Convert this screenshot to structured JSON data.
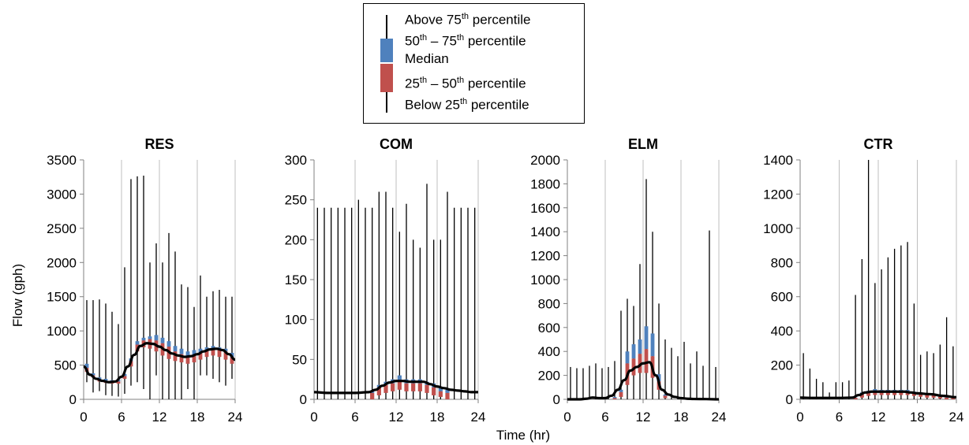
{
  "legend": {
    "items": [
      {
        "pre": "Above 75",
        "sup": "th",
        "post": " percentile"
      },
      {
        "pre": "50",
        "sup": "th",
        "post": " – 75",
        "sup2": "th",
        "post2": " percentile"
      },
      {
        "pre": "Median",
        "sup": "",
        "post": ""
      },
      {
        "pre": "25",
        "sup": "th",
        "post": " – 50",
        "sup2": "th",
        "post2": " percentile"
      },
      {
        "pre": "Below 25",
        "sup": "th",
        "post": " percentile"
      }
    ]
  },
  "colors": {
    "upper_box": "#4f81bd",
    "lower_box": "#c0504d",
    "whisker": "#000000",
    "median": "#000000",
    "grid": "#bfbfbf"
  },
  "chart_data": [
    {
      "type": "box",
      "title": "RES",
      "ylabel": "Flow (gph)",
      "xlabel": "Time (hr)",
      "xlim": [
        0,
        24
      ],
      "ylim": [
        0,
        3500
      ],
      "xticks": [
        0,
        6,
        12,
        18,
        24
      ],
      "yticks": [
        0,
        500,
        1000,
        1500,
        2000,
        2500,
        3000,
        3500
      ],
      "grid": "vertical",
      "x": [
        0,
        1,
        2,
        3,
        4,
        5,
        6,
        7,
        8,
        9,
        10,
        11,
        12,
        13,
        14,
        15,
        16,
        17,
        18,
        19,
        20,
        21,
        22,
        23
      ],
      "max": [
        1450,
        1450,
        1460,
        1400,
        1280,
        1100,
        1930,
        3220,
        3260,
        3270,
        2000,
        2280,
        2000,
        2430,
        2160,
        1680,
        1640,
        1350,
        1810,
        1500,
        1580,
        1600,
        1500,
        1500
      ],
      "q3": [
        520,
        380,
        320,
        300,
        280,
        290,
        370,
        600,
        850,
        900,
        920,
        940,
        900,
        850,
        780,
        740,
        700,
        720,
        740,
        760,
        780,
        760,
        740,
        680
      ],
      "median": [
        460,
        350,
        290,
        270,
        250,
        260,
        340,
        560,
        800,
        860,
        880,
        860,
        820,
        770,
        700,
        660,
        640,
        650,
        680,
        720,
        740,
        730,
        700,
        620
      ],
      "q1": [
        400,
        320,
        260,
        240,
        230,
        230,
        300,
        480,
        700,
        760,
        740,
        700,
        640,
        590,
        560,
        540,
        520,
        540,
        580,
        620,
        640,
        620,
        580,
        520
      ],
      "min": [
        250,
        100,
        120,
        60,
        50,
        40,
        80,
        200,
        250,
        150,
        0,
        350,
        0,
        0,
        0,
        0,
        150,
        0,
        350,
        350,
        300,
        250,
        200,
        300
      ],
      "median_line": [
        [
          0,
          480
        ],
        [
          1,
          360
        ],
        [
          2,
          300
        ],
        [
          3,
          270
        ],
        [
          4,
          250
        ],
        [
          5,
          260
        ],
        [
          6,
          330
        ],
        [
          7,
          480
        ],
        [
          8,
          650
        ],
        [
          9,
          780
        ],
        [
          10,
          820
        ],
        [
          11,
          810
        ],
        [
          12,
          770
        ],
        [
          13,
          720
        ],
        [
          14,
          670
        ],
        [
          15,
          640
        ],
        [
          16,
          620
        ],
        [
          17,
          630
        ],
        [
          18,
          660
        ],
        [
          19,
          700
        ],
        [
          20,
          730
        ],
        [
          21,
          740
        ],
        [
          22,
          720
        ],
        [
          23,
          660
        ],
        [
          24,
          580
        ]
      ]
    },
    {
      "type": "box",
      "title": "COM",
      "xlim": [
        0,
        24
      ],
      "ylim": [
        0,
        300
      ],
      "xticks": [
        0,
        6,
        12,
        18,
        24
      ],
      "yticks": [
        0,
        50,
        100,
        150,
        200,
        250,
        300
      ],
      "grid": "vertical",
      "x": [
        0,
        1,
        2,
        3,
        4,
        5,
        6,
        7,
        8,
        9,
        10,
        11,
        12,
        13,
        14,
        15,
        16,
        17,
        18,
        19,
        20,
        21,
        22,
        23
      ],
      "max": [
        240,
        240,
        240,
        240,
        240,
        240,
        250,
        240,
        240,
        260,
        260,
        240,
        210,
        245,
        200,
        190,
        270,
        200,
        200,
        260,
        240,
        240,
        240,
        240
      ],
      "q3": [
        0,
        0,
        0,
        0,
        0,
        0,
        0,
        0,
        10,
        18,
        22,
        25,
        30,
        25,
        25,
        25,
        22,
        20,
        15,
        12,
        0,
        0,
        0,
        0
      ],
      "median": [
        0,
        0,
        0,
        0,
        0,
        0,
        0,
        0,
        8,
        15,
        18,
        20,
        22,
        20,
        20,
        20,
        18,
        15,
        10,
        8,
        0,
        0,
        0,
        0
      ],
      "q1": [
        0,
        0,
        0,
        0,
        0,
        0,
        0,
        0,
        0,
        5,
        8,
        10,
        12,
        10,
        10,
        10,
        8,
        5,
        3,
        0,
        0,
        0,
        0,
        0
      ],
      "min": [
        0,
        0,
        0,
        0,
        0,
        0,
        0,
        0,
        0,
        0,
        0,
        0,
        0,
        0,
        0,
        0,
        0,
        0,
        0,
        0,
        0,
        0,
        0,
        0
      ],
      "median_line": [
        [
          0,
          9
        ],
        [
          2,
          8
        ],
        [
          4,
          8
        ],
        [
          6,
          8
        ],
        [
          8,
          9
        ],
        [
          9,
          12
        ],
        [
          10,
          17
        ],
        [
          11,
          21
        ],
        [
          12,
          23
        ],
        [
          13,
          23
        ],
        [
          14,
          22
        ],
        [
          15,
          22
        ],
        [
          16,
          22
        ],
        [
          17,
          19
        ],
        [
          18,
          16
        ],
        [
          19,
          14
        ],
        [
          20,
          12
        ],
        [
          21,
          11
        ],
        [
          22,
          10
        ],
        [
          23,
          9
        ],
        [
          24,
          9
        ]
      ]
    },
    {
      "type": "box",
      "title": "ELM",
      "xlim": [
        0,
        24
      ],
      "ylim": [
        0,
        2000
      ],
      "xticks": [
        0,
        6,
        12,
        18,
        24
      ],
      "yticks": [
        0,
        200,
        400,
        600,
        800,
        1000,
        1200,
        1400,
        1600,
        1800,
        2000
      ],
      "grid": "vertical",
      "x": [
        0,
        1,
        2,
        3,
        4,
        5,
        6,
        7,
        8,
        9,
        10,
        11,
        12,
        13,
        14,
        15,
        16,
        17,
        18,
        19,
        20,
        21,
        22,
        23
      ],
      "max": [
        270,
        260,
        260,
        280,
        300,
        260,
        270,
        320,
        740,
        840,
        780,
        1130,
        1840,
        1400,
        800,
        500,
        430,
        360,
        480,
        300,
        400,
        280,
        1410,
        270
      ],
      "q3": [
        0,
        0,
        0,
        0,
        0,
        0,
        0,
        20,
        80,
        400,
        460,
        500,
        610,
        550,
        210,
        40,
        0,
        0,
        0,
        0,
        0,
        0,
        0,
        0
      ],
      "median": [
        0,
        0,
        0,
        0,
        0,
        0,
        0,
        10,
        60,
        300,
        340,
        380,
        420,
        360,
        150,
        30,
        0,
        0,
        0,
        0,
        0,
        0,
        0,
        0
      ],
      "q1": [
        0,
        0,
        0,
        0,
        0,
        0,
        0,
        0,
        20,
        120,
        200,
        220,
        220,
        180,
        80,
        10,
        0,
        0,
        0,
        0,
        0,
        0,
        0,
        0
      ],
      "min": [
        0,
        0,
        0,
        0,
        0,
        0,
        0,
        0,
        0,
        0,
        0,
        0,
        0,
        0,
        0,
        0,
        0,
        0,
        0,
        0,
        0,
        0,
        0,
        0
      ],
      "median_line": [
        [
          0,
          0
        ],
        [
          2,
          0
        ],
        [
          3,
          5
        ],
        [
          4,
          15
        ],
        [
          5,
          10
        ],
        [
          6,
          10
        ],
        [
          7,
          30
        ],
        [
          8,
          80
        ],
        [
          9,
          160
        ],
        [
          10,
          240
        ],
        [
          11,
          270
        ],
        [
          12,
          300
        ],
        [
          13,
          310
        ],
        [
          14,
          200
        ],
        [
          15,
          80
        ],
        [
          16,
          40
        ],
        [
          17,
          20
        ],
        [
          18,
          10
        ],
        [
          19,
          5
        ],
        [
          20,
          3
        ],
        [
          22,
          2
        ],
        [
          24,
          0
        ]
      ]
    },
    {
      "type": "box",
      "title": "CTR",
      "xlim": [
        0,
        24
      ],
      "ylim": [
        0,
        1400
      ],
      "xticks": [
        0,
        6,
        12,
        18,
        24
      ],
      "yticks": [
        0,
        200,
        400,
        600,
        800,
        1000,
        1200,
        1400
      ],
      "grid": "vertical",
      "x": [
        0,
        1,
        2,
        3,
        4,
        5,
        6,
        7,
        8,
        9,
        10,
        11,
        12,
        13,
        14,
        15,
        16,
        17,
        18,
        19,
        20,
        21,
        22,
        23
      ],
      "max": [
        270,
        180,
        120,
        100,
        40,
        100,
        100,
        110,
        610,
        820,
        1400,
        680,
        760,
        830,
        880,
        900,
        920,
        560,
        260,
        280,
        270,
        320,
        480,
        310
      ],
      "q3": [
        0,
        0,
        0,
        0,
        0,
        0,
        0,
        0,
        10,
        40,
        50,
        60,
        55,
        55,
        55,
        55,
        55,
        45,
        40,
        35,
        30,
        20,
        15,
        10
      ],
      "median": [
        0,
        0,
        0,
        0,
        0,
        0,
        0,
        0,
        8,
        30,
        40,
        45,
        45,
        45,
        45,
        45,
        45,
        40,
        35,
        30,
        25,
        15,
        10,
        8
      ],
      "q1": [
        0,
        0,
        0,
        0,
        0,
        0,
        0,
        0,
        0,
        10,
        20,
        25,
        25,
        25,
        25,
        25,
        25,
        20,
        15,
        10,
        10,
        5,
        0,
        0
      ],
      "min": [
        0,
        0,
        0,
        0,
        0,
        0,
        0,
        0,
        0,
        0,
        0,
        0,
        0,
        0,
        0,
        0,
        0,
        0,
        0,
        0,
        0,
        0,
        0,
        0
      ],
      "median_line": [
        [
          0,
          10
        ],
        [
          2,
          8
        ],
        [
          4,
          8
        ],
        [
          6,
          8
        ],
        [
          8,
          10
        ],
        [
          9,
          25
        ],
        [
          10,
          40
        ],
        [
          11,
          45
        ],
        [
          12,
          45
        ],
        [
          14,
          45
        ],
        [
          16,
          45
        ],
        [
          17,
          40
        ],
        [
          18,
          35
        ],
        [
          20,
          30
        ],
        [
          22,
          20
        ],
        [
          24,
          12
        ]
      ]
    }
  ]
}
